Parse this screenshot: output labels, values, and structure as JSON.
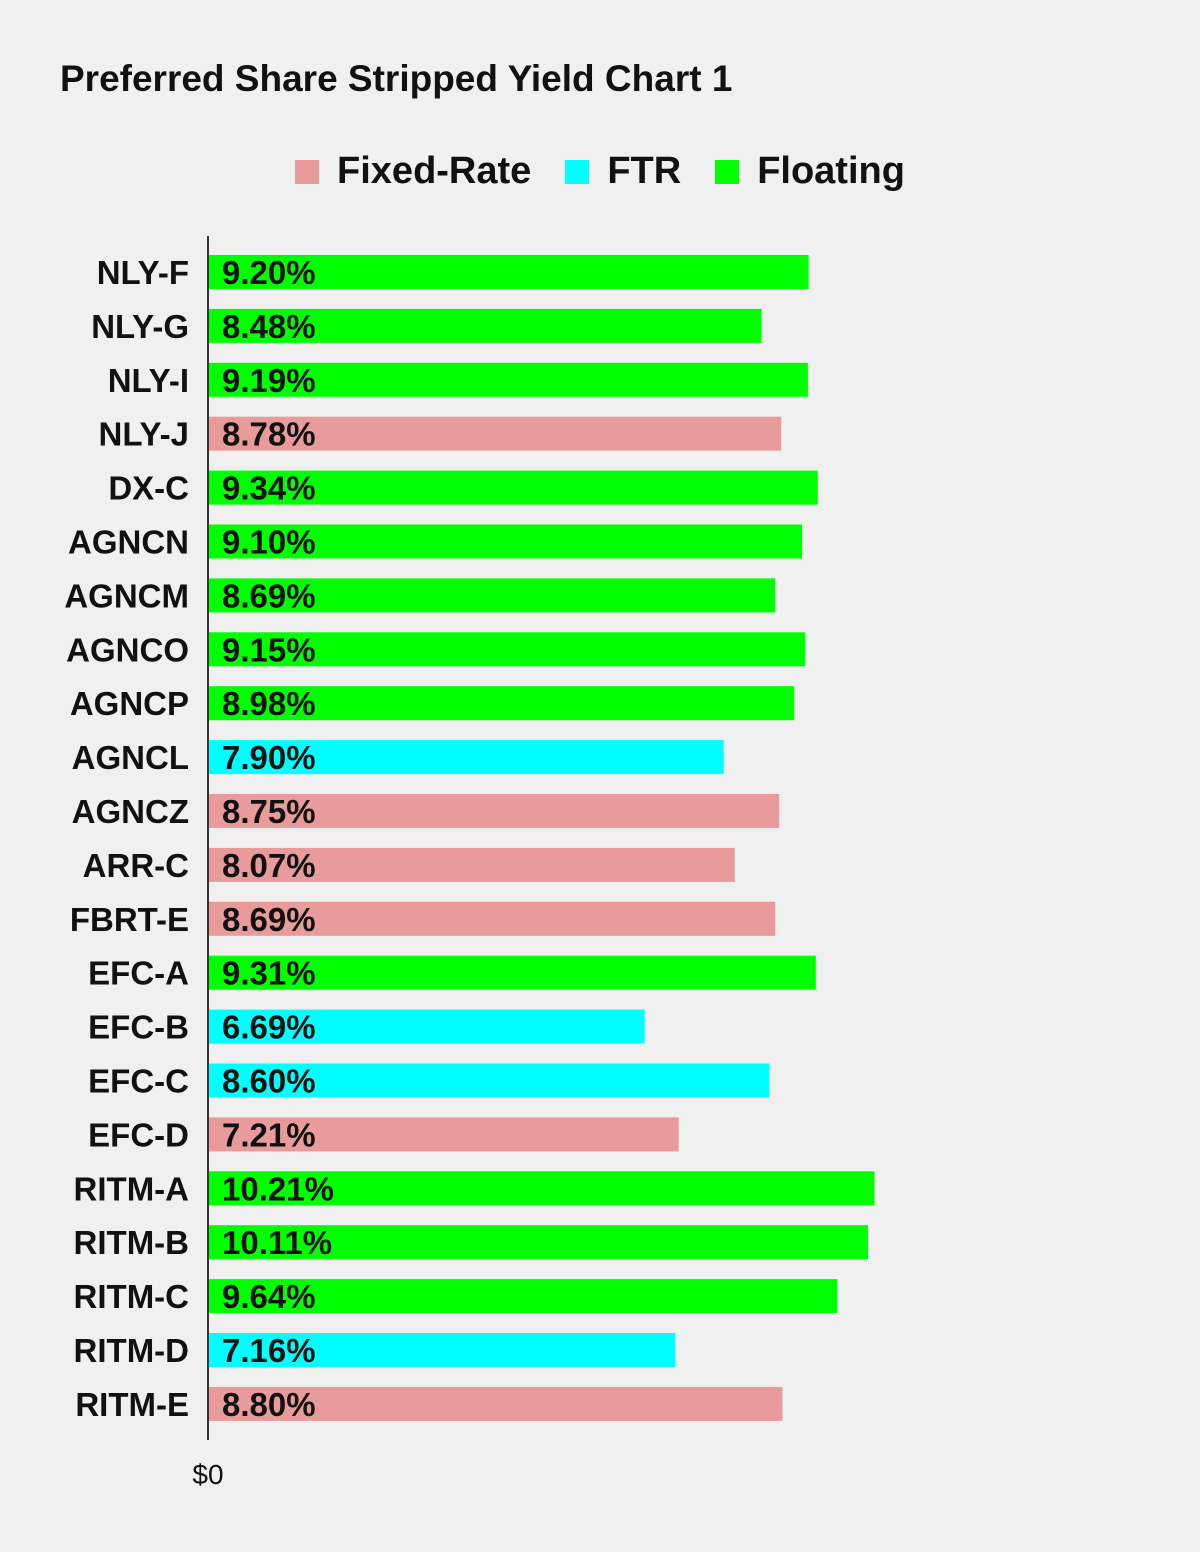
{
  "colors": {
    "background": "#f0f0f0",
    "Fixed-Rate": "#e89b9a",
    "FTR": "#00ffff",
    "Floating": "#00ff00",
    "axis": "#333333",
    "text": "#111111"
  },
  "chart_data": {
    "type": "bar",
    "orientation": "horizontal",
    "title": "Preferred Share Stripped Yield Chart 1",
    "xlabel": "",
    "ylabel": "",
    "x_tick_labels": [
      "$0"
    ],
    "xlim": [
      0,
      11.06
    ],
    "grid": false,
    "legend": {
      "placement": "top-center",
      "entries": [
        "Fixed-Rate",
        "FTR",
        "Floating"
      ]
    },
    "categories": [
      "NLY-F",
      "NLY-G",
      "NLY-I",
      "NLY-J",
      "DX-C",
      "AGNCN",
      "AGNCM",
      "AGNCO",
      "AGNCP",
      "AGNCL",
      "AGNCZ",
      "ARR-C",
      "FBRT-E",
      "EFC-A",
      "EFC-B",
      "EFC-C",
      "EFC-D",
      "RITM-A",
      "RITM-B",
      "RITM-C",
      "RITM-D",
      "RITM-E"
    ],
    "values": [
      9.2,
      8.48,
      9.19,
      8.78,
      9.34,
      9.1,
      8.69,
      9.15,
      8.98,
      7.9,
      8.75,
      8.07,
      8.69,
      9.31,
      6.69,
      8.6,
      7.21,
      10.21,
      10.11,
      9.64,
      7.16,
      8.8
    ],
    "value_labels": [
      "9.20%",
      "8.48%",
      "9.19%",
      "8.78%",
      "9.34%",
      "9.10%",
      "8.69%",
      "9.15%",
      "8.98%",
      "7.90%",
      "8.75%",
      "8.07%",
      "8.69%",
      "9.31%",
      "6.69%",
      "8.60%",
      "7.21%",
      "10.21%",
      "10.11%",
      "9.64%",
      "7.16%",
      "8.80%"
    ],
    "types": [
      "Floating",
      "Floating",
      "Floating",
      "Fixed-Rate",
      "Floating",
      "Floating",
      "Floating",
      "Floating",
      "Floating",
      "FTR",
      "Fixed-Rate",
      "Fixed-Rate",
      "Fixed-Rate",
      "Floating",
      "FTR",
      "FTR",
      "Fixed-Rate",
      "Floating",
      "Floating",
      "Floating",
      "FTR",
      "Fixed-Rate"
    ]
  }
}
